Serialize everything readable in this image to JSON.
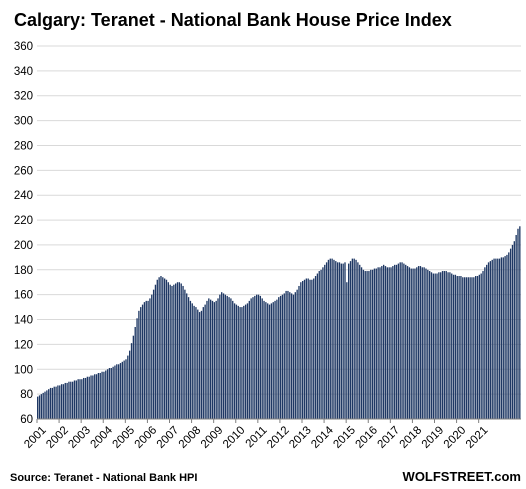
{
  "chart_data": {
    "type": "bar",
    "title": "Calgary: Teranet - National Bank House Price Index",
    "source": "Source: Teranet - National Bank HPI",
    "brand": "WOLFSTREET.com",
    "ylim": [
      60,
      360
    ],
    "yticks": [
      60,
      80,
      100,
      120,
      140,
      160,
      180,
      200,
      220,
      240,
      260,
      280,
      300,
      320,
      340,
      360
    ],
    "year_labels": [
      "2001",
      "2002",
      "2003",
      "2004",
      "2005",
      "2006",
      "2007",
      "2008",
      "2009",
      "2010",
      "2011",
      "2012",
      "2013",
      "2014",
      "2015",
      "2016",
      "2017",
      "2018",
      "2019",
      "2020",
      "2021"
    ],
    "start": "2001-01",
    "grid": true,
    "bar_color": "#1f3864",
    "values": [
      78,
      79,
      80,
      81,
      82,
      83,
      84,
      85,
      85,
      86,
      86,
      87,
      87,
      88,
      88,
      89,
      89,
      90,
      90,
      90,
      91,
      91,
      92,
      92,
      92,
      93,
      93,
      94,
      94,
      95,
      95,
      96,
      96,
      97,
      97,
      98,
      98,
      99,
      100,
      101,
      101,
      102,
      103,
      104,
      104,
      105,
      106,
      107,
      108,
      111,
      115,
      121,
      127,
      134,
      141,
      147,
      150,
      152,
      154,
      155,
      155,
      157,
      160,
      164,
      168,
      172,
      174,
      175,
      174,
      173,
      172,
      170,
      168,
      167,
      168,
      169,
      170,
      170,
      169,
      167,
      164,
      161,
      158,
      155,
      153,
      151,
      150,
      148,
      146,
      147,
      150,
      152,
      155,
      157,
      156,
      155,
      154,
      155,
      157,
      160,
      162,
      161,
      160,
      159,
      158,
      157,
      155,
      153,
      152,
      151,
      150,
      150,
      151,
      152,
      153,
      155,
      157,
      158,
      159,
      160,
      160,
      159,
      157,
      155,
      154,
      153,
      152,
      153,
      154,
      155,
      156,
      158,
      159,
      160,
      161,
      163,
      163,
      162,
      161,
      160,
      162,
      164,
      167,
      170,
      171,
      172,
      173,
      173,
      172,
      172,
      173,
      175,
      177,
      179,
      180,
      182,
      184,
      186,
      188,
      189,
      189,
      188,
      187,
      186,
      186,
      185,
      185,
      186,
      170,
      185,
      187,
      189,
      189,
      188,
      186,
      184,
      182,
      180,
      179,
      179,
      179,
      180,
      180,
      181,
      181,
      182,
      182,
      183,
      184,
      183,
      182,
      182,
      182,
      183,
      184,
      184,
      185,
      186,
      186,
      185,
      184,
      183,
      182,
      181,
      181,
      181,
      182,
      183,
      183,
      182,
      182,
      181,
      180,
      179,
      178,
      177,
      177,
      177,
      178,
      178,
      179,
      179,
      179,
      178,
      178,
      177,
      176,
      176,
      175,
      175,
      175,
      174,
      174,
      174,
      174,
      174,
      174,
      174,
      175,
      175,
      176,
      177,
      179,
      182,
      184,
      186,
      187,
      188,
      189,
      189,
      189,
      189,
      190,
      190,
      191,
      192,
      194,
      197,
      200,
      203,
      208,
      213,
      215
    ]
  }
}
